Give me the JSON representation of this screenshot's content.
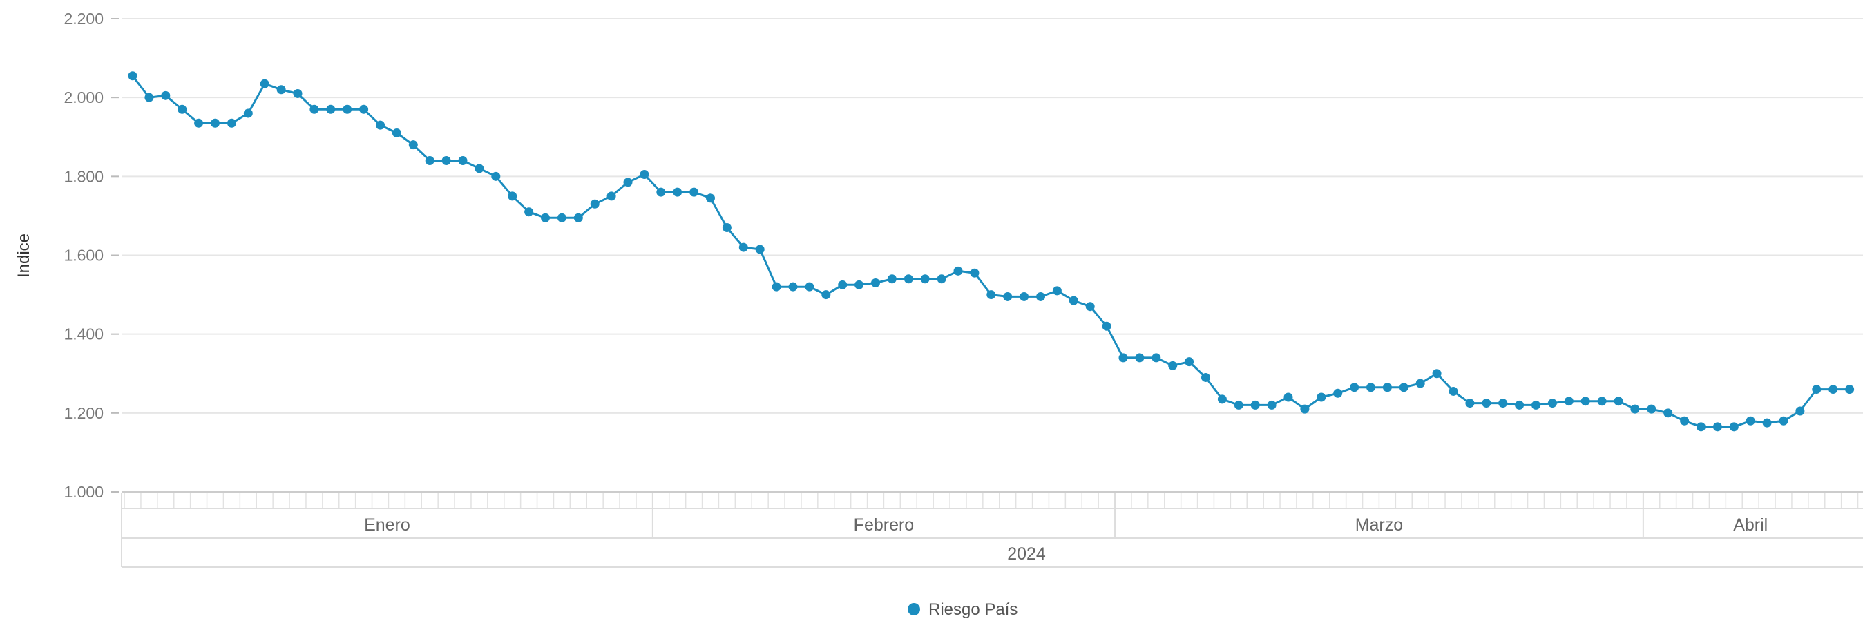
{
  "chart_data": {
    "type": "line",
    "title": "",
    "xlabel": "",
    "ylabel": "Indice",
    "ylim": [
      1000,
      2200
    ],
    "yticks": [
      "1.000",
      "1.200",
      "1.400",
      "1.600",
      "1.800",
      "2.000",
      "2.200"
    ],
    "grid": "horizontal",
    "legend_position": "bottom-center",
    "colors": {
      "series": "#1b8dbf",
      "grid": "#e6e6e6",
      "axis": "#cccccc"
    },
    "x_groups": {
      "months": [
        "Enero",
        "Febrero",
        "Marzo",
        "Abril"
      ],
      "year": "2024"
    },
    "series": [
      {
        "name": "Riesgo País",
        "segments": [
          [
            2055,
            2000,
            2005,
            1970,
            1935,
            1935,
            1935,
            1960,
            2035,
            2020,
            2010,
            1970,
            1970,
            1970,
            1970,
            1930,
            1910,
            1880,
            1840,
            1840,
            1840,
            1820,
            1800,
            1750,
            1710,
            1695,
            1695,
            1695,
            1730,
            1750,
            1785,
            1805
          ],
          [
            1760,
            1760,
            1760,
            1745,
            1670,
            1620,
            1615,
            1520,
            1520,
            1520,
            1500,
            1525,
            1525,
            1530,
            1540,
            1540,
            1540,
            1540,
            1560,
            1555,
            1500,
            1495,
            1495,
            1495,
            1510,
            1485,
            1470,
            1420
          ],
          [
            1340,
            1340,
            1340,
            1320,
            1330,
            1290,
            1235,
            1220,
            1220,
            1220,
            1240,
            1210,
            1240,
            1250,
            1265,
            1265,
            1265,
            1265,
            1275,
            1300,
            1255,
            1225,
            1225,
            1225,
            1220,
            1220,
            1225,
            1230,
            1230,
            1230,
            1230,
            1210
          ],
          [
            1210,
            1200,
            1180,
            1165,
            1165,
            1165,
            1180,
            1175,
            1180,
            1205,
            1260,
            1260,
            1260
          ]
        ]
      }
    ]
  }
}
